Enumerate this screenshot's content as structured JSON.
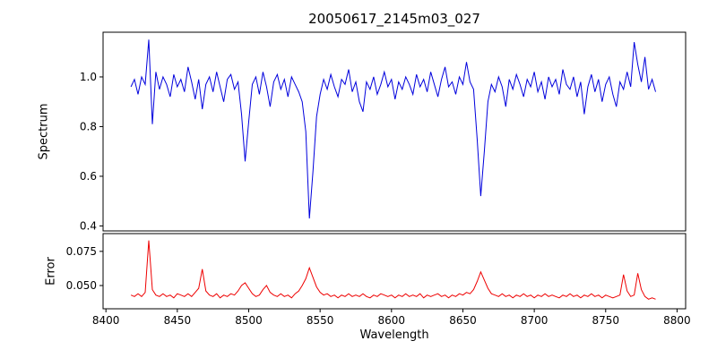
{
  "chart_data": {
    "type": "line",
    "title": "20050617_2145m03_027",
    "xlabel": "Wavelength",
    "xlim": [
      8398,
      8806
    ],
    "xticks": [
      8400,
      8450,
      8500,
      8550,
      8600,
      8650,
      8700,
      8750,
      8800
    ],
    "xtick_labels": [
      "8400",
      "8450",
      "8500",
      "8550",
      "8600",
      "8650",
      "8700",
      "8750",
      "8800"
    ],
    "x_start": 8417.5,
    "x_step": 2.5,
    "grid": false,
    "legend": "none",
    "subplots": [
      {
        "name": "spectrum",
        "ylabel": "Spectrum",
        "ylim": [
          0.38,
          1.18
        ],
        "yticks": [
          0.4,
          0.6,
          0.8,
          1.0
        ],
        "ytick_labels": [
          "0.4",
          "0.6",
          "0.8",
          "1.0"
        ],
        "color": "#0000dd",
        "features": "absorption lines at 8497.5 (depth 0.66), 8542.5 (depth 0.43), 8662.5 (depth 0.52); emission-like spikes near 8430 and 8770",
        "values": [
          0.96,
          0.99,
          0.93,
          1.0,
          0.97,
          1.15,
          0.81,
          1.02,
          0.95,
          1.0,
          0.97,
          0.92,
          1.01,
          0.96,
          0.99,
          0.94,
          1.04,
          0.98,
          0.91,
          0.99,
          0.87,
          0.97,
          1.0,
          0.94,
          1.02,
          0.96,
          0.9,
          0.99,
          1.01,
          0.95,
          0.98,
          0.85,
          0.66,
          0.82,
          0.97,
          1.0,
          0.93,
          1.02,
          0.96,
          0.88,
          0.98,
          1.01,
          0.95,
          0.99,
          0.92,
          1.0,
          0.97,
          0.94,
          0.9,
          0.78,
          0.43,
          0.62,
          0.84,
          0.93,
          0.99,
          0.95,
          1.01,
          0.96,
          0.92,
          0.99,
          0.97,
          1.03,
          0.94,
          0.98,
          0.9,
          0.86,
          0.98,
          0.95,
          1.0,
          0.93,
          0.97,
          1.02,
          0.96,
          0.99,
          0.91,
          0.98,
          0.95,
          1.0,
          0.97,
          0.93,
          1.01,
          0.96,
          0.99,
          0.94,
          1.02,
          0.97,
          0.92,
          0.99,
          1.04,
          0.96,
          0.98,
          0.93,
          1.0,
          0.97,
          1.06,
          0.98,
          0.95,
          0.75,
          0.52,
          0.7,
          0.9,
          0.97,
          0.94,
          1.0,
          0.96,
          0.88,
          0.99,
          0.95,
          1.01,
          0.97,
          0.92,
          0.99,
          0.96,
          1.02,
          0.94,
          0.98,
          0.91,
          1.0,
          0.96,
          0.99,
          0.93,
          1.03,
          0.97,
          0.95,
          1.0,
          0.92,
          0.98,
          0.85,
          0.96,
          1.01,
          0.94,
          0.99,
          0.9,
          0.97,
          1.0,
          0.93,
          0.88,
          0.98,
          0.95,
          1.02,
          0.96,
          1.14,
          1.05,
          0.98,
          1.08,
          0.95,
          0.99,
          0.94
        ]
      },
      {
        "name": "error",
        "ylabel": "Error",
        "ylim": [
          0.033,
          0.088
        ],
        "yticks": [
          0.05,
          0.075
        ],
        "ytick_labels": [
          "0.050",
          "0.075"
        ],
        "color": "#ee0000",
        "features": "baseline ~0.043 with spikes near 8430 (0.083), 8467 (0.062), 8542 (0.063), 8662 (0.060), 8763 (0.058), 8773 (0.059)",
        "values": [
          0.043,
          0.042,
          0.044,
          0.042,
          0.045,
          0.083,
          0.047,
          0.043,
          0.042,
          0.044,
          0.042,
          0.043,
          0.041,
          0.044,
          0.043,
          0.042,
          0.044,
          0.042,
          0.045,
          0.048,
          0.062,
          0.046,
          0.043,
          0.042,
          0.044,
          0.041,
          0.043,
          0.042,
          0.044,
          0.043,
          0.046,
          0.05,
          0.052,
          0.048,
          0.044,
          0.042,
          0.043,
          0.047,
          0.05,
          0.045,
          0.043,
          0.042,
          0.044,
          0.042,
          0.043,
          0.041,
          0.044,
          0.046,
          0.05,
          0.055,
          0.063,
          0.056,
          0.049,
          0.045,
          0.043,
          0.044,
          0.042,
          0.043,
          0.041,
          0.043,
          0.042,
          0.044,
          0.042,
          0.043,
          0.042,
          0.044,
          0.042,
          0.041,
          0.043,
          0.042,
          0.044,
          0.043,
          0.042,
          0.043,
          0.041,
          0.043,
          0.042,
          0.044,
          0.042,
          0.043,
          0.042,
          0.044,
          0.041,
          0.043,
          0.042,
          0.043,
          0.044,
          0.042,
          0.043,
          0.041,
          0.043,
          0.042,
          0.044,
          0.043,
          0.045,
          0.044,
          0.047,
          0.053,
          0.06,
          0.054,
          0.048,
          0.044,
          0.043,
          0.042,
          0.044,
          0.042,
          0.043,
          0.041,
          0.043,
          0.042,
          0.044,
          0.042,
          0.043,
          0.041,
          0.043,
          0.042,
          0.044,
          0.042,
          0.043,
          0.042,
          0.041,
          0.043,
          0.042,
          0.044,
          0.042,
          0.043,
          0.041,
          0.043,
          0.042,
          0.044,
          0.042,
          0.043,
          0.041,
          0.043,
          0.042,
          0.041,
          0.042,
          0.043,
          0.058,
          0.046,
          0.042,
          0.043,
          0.059,
          0.047,
          0.042,
          0.04,
          0.041,
          0.04
        ]
      }
    ]
  }
}
